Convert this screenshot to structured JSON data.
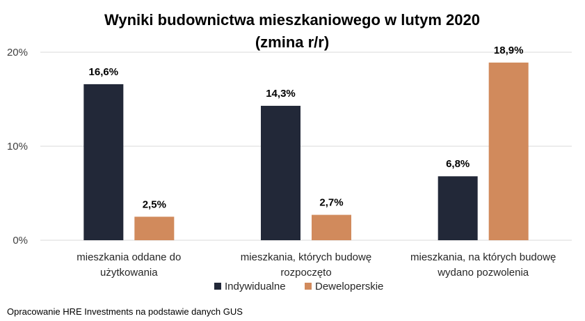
{
  "chart_data": {
    "type": "bar",
    "title_lines": [
      "Wyniki budownictwa mieszkaniowego w lutym 2020",
      "(zmina r/r)"
    ],
    "categories": [
      [
        "mieszkania oddane do",
        "użytkowania"
      ],
      [
        "mieszkania, których budowę",
        "rozpoczęto"
      ],
      [
        "mieszkania, na których budowę",
        "wydano pozwolenia"
      ]
    ],
    "series": [
      {
        "name": "Indywidualne",
        "color": "#222838",
        "values": [
          16.6,
          14.3,
          6.8
        ],
        "labels": [
          "16,6%",
          "14,3%",
          "6,8%"
        ]
      },
      {
        "name": "Deweloperskie",
        "color": "#D18A5C",
        "values": [
          2.5,
          2.7,
          18.9
        ],
        "labels": [
          "2,5%",
          "2,7%",
          "18,9%"
        ]
      }
    ],
    "ylim": [
      0,
      20
    ],
    "yticks": [
      0,
      10,
      20
    ],
    "ytick_labels": [
      "0%",
      "10%",
      "20%"
    ],
    "grid": true,
    "legend_position": "bottom"
  },
  "source_note": "Opracowanie HRE Investments na podstawie danych GUS"
}
